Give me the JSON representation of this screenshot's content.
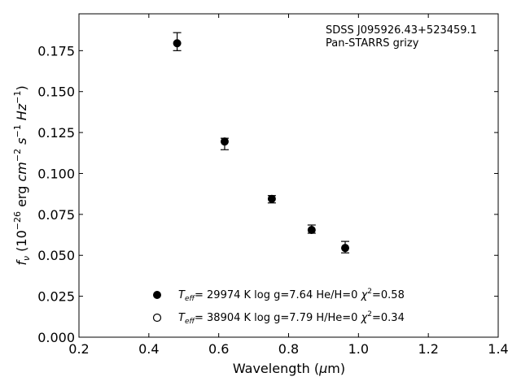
{
  "chart_data": {
    "type": "scatter",
    "title": "",
    "xlabel_main": "Wavelength (",
    "xlabel_mu": "μ",
    "xlabel_unit": "m)",
    "ylabel_f": "f",
    "ylabel_nu": "ν",
    "ylabel_open": " (10",
    "ylabel_exp1": "−26",
    "ylabel_erg": " erg ",
    "ylabel_cm": "cm",
    "ylabel_exp2": "−2",
    "ylabel_s": " s",
    "ylabel_exp3": "−1",
    "ylabel_hz": " Hz",
    "ylabel_exp4": "−1",
    "ylabel_close": ")",
    "xlim": [
      0.2,
      1.4
    ],
    "ylim": [
      0.0,
      0.1975
    ],
    "x_ticks": [
      "0.2",
      "0.4",
      "0.6",
      "0.8",
      "1.0",
      "1.2",
      "1.4"
    ],
    "y_ticks": [
      "0.000",
      "0.025",
      "0.050",
      "0.075",
      "0.100",
      "0.125",
      "0.150",
      "0.175"
    ],
    "annotation_lines": [
      "SDSS J095926.43+523459.1",
      "Pan-STARRS grizy"
    ],
    "points": [
      {
        "x": 0.481,
        "y": 0.1795,
        "err_lo": 0.0045,
        "err_hi": 0.0065
      },
      {
        "x": 0.617,
        "y": 0.1195,
        "err_lo": 0.005,
        "err_hi": 0.002
      },
      {
        "x": 0.752,
        "y": 0.0845,
        "err_lo": 0.0025,
        "err_hi": 0.002
      },
      {
        "x": 0.866,
        "y": 0.0655,
        "err_lo": 0.002,
        "err_hi": 0.003
      },
      {
        "x": 0.962,
        "y": 0.0545,
        "err_lo": 0.003,
        "err_hi": 0.004
      }
    ],
    "legend": [
      {
        "marker": "filled-circle",
        "teff_T": "T",
        "teff_sub": "eff",
        "rest": "= 29974 K  log g=7.64  He/H=0  ",
        "chi": "χ",
        "chi_sup": "2",
        "chi_val": "=0.58"
      },
      {
        "marker": "open-circle",
        "teff_T": "T",
        "teff_sub": "eff",
        "rest": "= 38904 K  log g=7.79  H/He=0  ",
        "chi": "χ",
        "chi_sup": "2",
        "chi_val": "=0.34"
      }
    ],
    "legend_position": "lower-center",
    "grid": false
  }
}
